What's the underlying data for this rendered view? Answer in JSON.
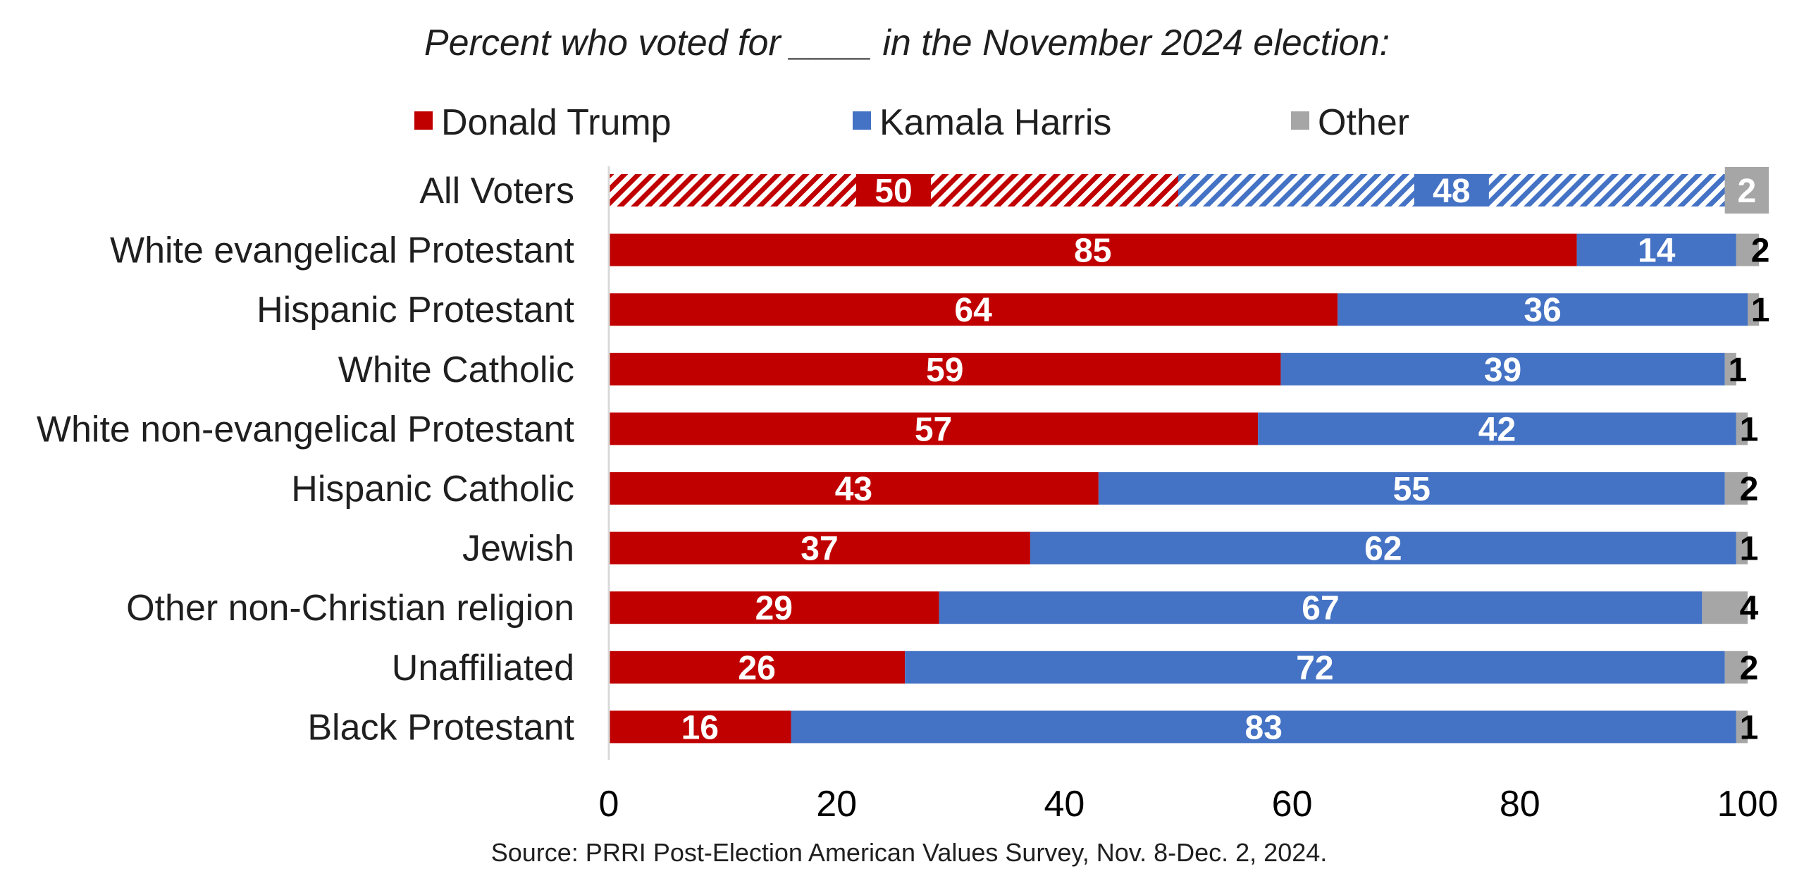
{
  "chart_data": {
    "type": "bar",
    "orientation": "horizontal",
    "stacked": true,
    "title": "Percent who voted for ____ in the November 2024 election:",
    "source": "Source: PRRI Post-Election American Values Survey, Nov. 8-Dec. 2, 2024.",
    "legend_position": "top",
    "categories": [
      "All Voters",
      "White evangelical Protestant",
      "Hispanic Protestant",
      "White Catholic",
      "White non-evangelical Protestant",
      "Hispanic Catholic",
      "Jewish",
      "Other non-Christian religion",
      "Unaffiliated",
      "Black Protestant"
    ],
    "series": [
      {
        "name": "Donald Trump",
        "color": "#c00000",
        "values": [
          50,
          85,
          64,
          59,
          57,
          43,
          37,
          29,
          26,
          16
        ]
      },
      {
        "name": "Kamala Harris",
        "color": "#4472c4",
        "values": [
          48,
          14,
          36,
          39,
          42,
          55,
          62,
          67,
          72,
          83
        ]
      },
      {
        "name": "Other",
        "color": "#a6a6a6",
        "values": [
          2,
          2,
          1,
          1,
          1,
          2,
          1,
          4,
          2,
          1
        ]
      }
    ],
    "hatched_categories": [
      "All Voters"
    ],
    "xlim": [
      0,
      100
    ],
    "xticks": [
      "0",
      "20",
      "40",
      "60",
      "80",
      "100"
    ],
    "grid": false
  }
}
